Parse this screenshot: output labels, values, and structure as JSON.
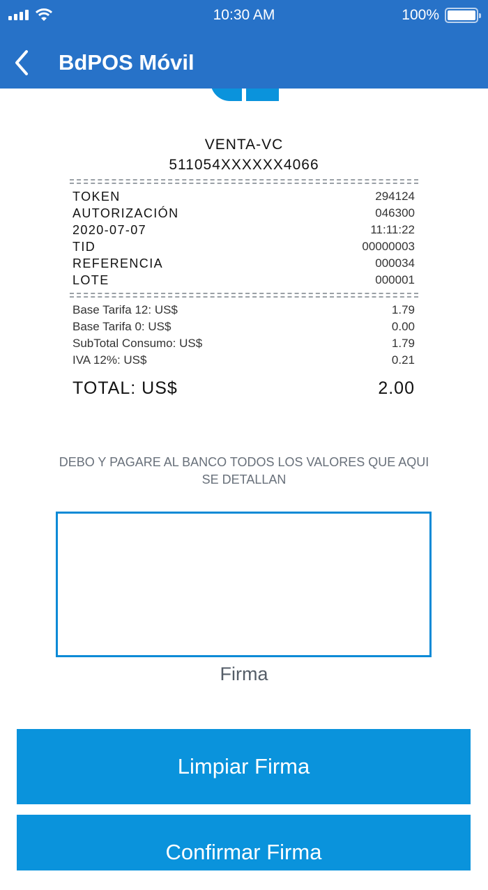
{
  "status_bar": {
    "time": "10:30 AM",
    "battery": "100%",
    "icons": [
      "signal-icon",
      "wifi-icon",
      "battery-icon"
    ]
  },
  "header": {
    "title": "BdPOS Móvil",
    "back_icon": "chevron-left-icon"
  },
  "receipt": {
    "type": "VENTA-VC",
    "card": "511054XXXXXX4066",
    "details": [
      {
        "label": "TOKEN",
        "value": "294124"
      },
      {
        "label": "AUTORIZACIÓN",
        "value": "046300"
      },
      {
        "label": "2020-07-07",
        "value": "11:11:22"
      },
      {
        "label": "TID",
        "value": "00000003"
      },
      {
        "label": "REFERENCIA",
        "value": "000034"
      },
      {
        "label": "LOTE",
        "value": "000001"
      }
    ],
    "amounts": [
      {
        "label": "Base Tarifa 12: US$",
        "value": "1.79"
      },
      {
        "label": "Base Tarifa 0: US$",
        "value": "0.00"
      },
      {
        "label": "SubTotal Consumo: US$",
        "value": "1.79"
      },
      {
        "label": "IVA 12%: US$",
        "value": "0.21"
      }
    ],
    "total": {
      "label": "TOTAL: US$",
      "value": "2.00"
    }
  },
  "disclaimer": "DEBO Y PAGARE AL BANCO TODOS LOS VALORES QUE AQUI SE DETALLAN",
  "signature": {
    "label": "Firma"
  },
  "buttons": {
    "clear": "Limpiar Firma",
    "confirm": "Confirmar Firma"
  },
  "colors": {
    "header": "#2772c8",
    "accent": "#0a93dc"
  }
}
